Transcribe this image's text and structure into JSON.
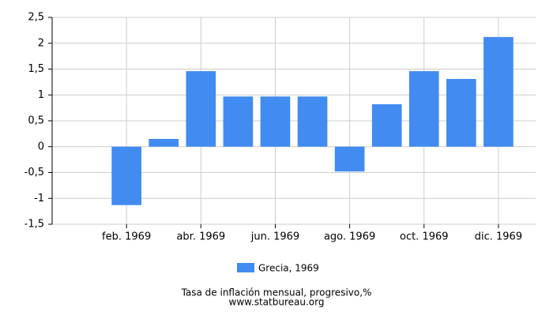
{
  "chart_data": {
    "type": "bar",
    "title": "Tasa de inflación mensual, progresivo,%",
    "subtitle": "www.statbureau.org",
    "categories": [
      null,
      "feb. 1969",
      null,
      "abr. 1969",
      null,
      "jun. 1969",
      null,
      "ago. 1969",
      null,
      "oct. 1969",
      null,
      "dic. 1969"
    ],
    "series": [
      {
        "name": "Grecia, 1969",
        "color": "#428bf0",
        "values": [
          null,
          -1.13,
          0.15,
          1.46,
          0.97,
          0.97,
          0.97,
          -0.48,
          0.82,
          1.46,
          1.31,
          2.12
        ]
      }
    ],
    "ylim": [
      -1.5,
      2.5
    ],
    "yticks": [
      {
        "value": -1.5,
        "label": "-1,5"
      },
      -1,
      {
        "value": -0.5,
        "label": "-0,5"
      },
      0,
      {
        "value": 0.5,
        "label": "0,5"
      },
      1,
      {
        "value": 1.5,
        "label": "1,5"
      },
      2,
      {
        "value": 2.5,
        "label": "2,5"
      }
    ],
    "grid": true
  }
}
